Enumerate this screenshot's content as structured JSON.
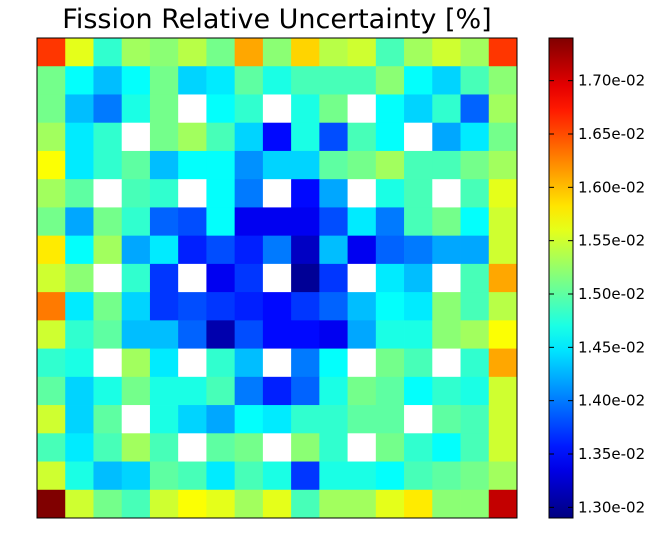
{
  "chart_data": {
    "type": "heatmap",
    "title": "Fission Relative Uncertainty [%]",
    "xlabel": "",
    "ylabel": "",
    "rows": 17,
    "cols": 17,
    "colormap": "jet",
    "vmin": 0.0129,
    "vmax": 0.0174,
    "empty_cell_color": "#ffffff",
    "colorbar": {
      "position": "right",
      "ticks": [
        0.013,
        0.0135,
        0.014,
        0.0145,
        0.015,
        0.0155,
        0.016,
        0.0165,
        0.017
      ],
      "tick_labels": [
        "1.30e-02",
        "1.35e-02",
        "1.40e-02",
        "1.45e-02",
        "1.50e-02",
        "1.55e-02",
        "1.60e-02",
        "1.65e-02",
        "1.70e-02"
      ]
    },
    "values": [
      [
        0.0166,
        0.0156,
        0.0148,
        0.0153,
        0.0152,
        0.0154,
        0.0151,
        0.0161,
        0.0152,
        0.0159,
        0.0154,
        0.0155,
        0.0149,
        0.0153,
        0.0155,
        0.0153,
        0.0166
      ],
      [
        0.0151,
        0.0146,
        0.0143,
        0.0146,
        0.0151,
        0.0144,
        0.0145,
        0.015,
        0.0147,
        0.0149,
        0.0149,
        0.0149,
        0.0152,
        0.0146,
        0.0144,
        0.0149,
        0.0152
      ],
      [
        0.0151,
        0.0143,
        0.014,
        0.0147,
        0.0151,
        null,
        0.0146,
        0.0148,
        null,
        0.0147,
        0.0151,
        null,
        0.0146,
        0.0144,
        0.0148,
        0.0139,
        0.0153
      ],
      [
        0.0153,
        0.0145,
        0.0148,
        null,
        0.0151,
        0.0153,
        0.0149,
        0.0144,
        0.0135,
        0.0147,
        0.0138,
        0.0149,
        0.0146,
        null,
        0.0142,
        0.0145,
        0.0151
      ],
      [
        0.0157,
        0.0145,
        0.0148,
        0.015,
        0.0143,
        0.0146,
        0.0146,
        0.0141,
        0.0144,
        0.0144,
        0.015,
        0.0151,
        0.0153,
        0.0149,
        0.0149,
        0.0151,
        0.0153
      ],
      [
        0.0153,
        0.015,
        null,
        0.0149,
        0.0148,
        null,
        0.0146,
        0.014,
        null,
        0.0135,
        0.0142,
        null,
        0.0147,
        0.0149,
        null,
        0.0149,
        0.0156
      ],
      [
        0.0151,
        0.0142,
        0.0151,
        0.0148,
        0.0139,
        0.0138,
        0.0146,
        0.0134,
        0.0134,
        0.0134,
        0.0138,
        0.0145,
        0.014,
        0.0149,
        0.0151,
        0.0146,
        0.0155
      ],
      [
        0.0158,
        0.0146,
        0.0153,
        0.0142,
        0.0145,
        0.0136,
        0.0138,
        0.0136,
        0.014,
        0.0132,
        0.0143,
        0.0134,
        0.0139,
        0.014,
        0.0142,
        0.0142,
        0.0155
      ],
      [
        0.0155,
        0.0152,
        null,
        0.0148,
        0.0137,
        null,
        0.0134,
        0.0137,
        null,
        0.013,
        0.0137,
        null,
        0.0145,
        0.0143,
        null,
        0.0149,
        0.0161
      ],
      [
        0.0163,
        0.0145,
        0.0151,
        0.0144,
        0.0137,
        0.0138,
        0.0137,
        0.0136,
        0.0135,
        0.0137,
        0.0139,
        0.0143,
        0.0146,
        0.0145,
        0.0152,
        0.0149,
        0.0154
      ],
      [
        0.0155,
        0.0148,
        0.015,
        0.0143,
        0.0143,
        0.0139,
        0.0131,
        0.0138,
        0.0135,
        0.0135,
        0.0134,
        0.0142,
        0.0147,
        0.0147,
        0.0152,
        0.0153,
        0.0157
      ],
      [
        0.0148,
        0.0147,
        null,
        0.0153,
        0.0145,
        null,
        0.0148,
        0.0143,
        null,
        0.014,
        0.0146,
        null,
        0.0151,
        0.0149,
        null,
        0.0148,
        0.0161
      ],
      [
        0.015,
        0.0144,
        0.0147,
        0.0151,
        0.0147,
        0.0147,
        0.0149,
        0.014,
        0.0136,
        0.0139,
        0.0147,
        0.0151,
        0.015,
        0.0146,
        0.0148,
        0.0147,
        0.0155
      ],
      [
        0.0155,
        0.0144,
        0.015,
        null,
        0.0147,
        0.0144,
        0.0142,
        0.0146,
        0.0145,
        0.0148,
        0.0148,
        0.015,
        0.015,
        null,
        0.015,
        0.0149,
        0.0155
      ],
      [
        0.0149,
        0.0145,
        0.0149,
        0.0153,
        0.0149,
        null,
        0.015,
        0.0151,
        null,
        0.0152,
        0.0148,
        null,
        0.0151,
        0.0148,
        0.0146,
        0.0149,
        0.0155
      ],
      [
        0.0155,
        0.0147,
        0.0143,
        0.0144,
        0.015,
        0.0149,
        0.0145,
        0.0149,
        0.0147,
        0.0137,
        0.0147,
        0.0147,
        0.0146,
        0.0149,
        0.015,
        0.0151,
        0.0153
      ],
      [
        0.0174,
        0.0155,
        0.0151,
        0.0149,
        0.0155,
        0.0157,
        0.0156,
        0.0153,
        0.0156,
        0.0149,
        0.0153,
        0.0153,
        0.0156,
        0.0158,
        0.0152,
        0.0152,
        0.0171
      ]
    ]
  }
}
